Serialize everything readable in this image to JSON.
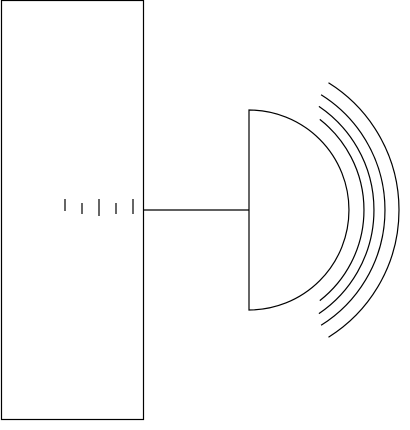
{
  "diagram": {
    "components": [
      "rectangular-block",
      "tick-marks",
      "connecting-rod",
      "semicircular-dome",
      "wave-arcs"
    ],
    "tick_count": 5,
    "wave_arc_count": 4,
    "colors": {
      "stroke": "#000000",
      "background": "#ffffff"
    }
  }
}
